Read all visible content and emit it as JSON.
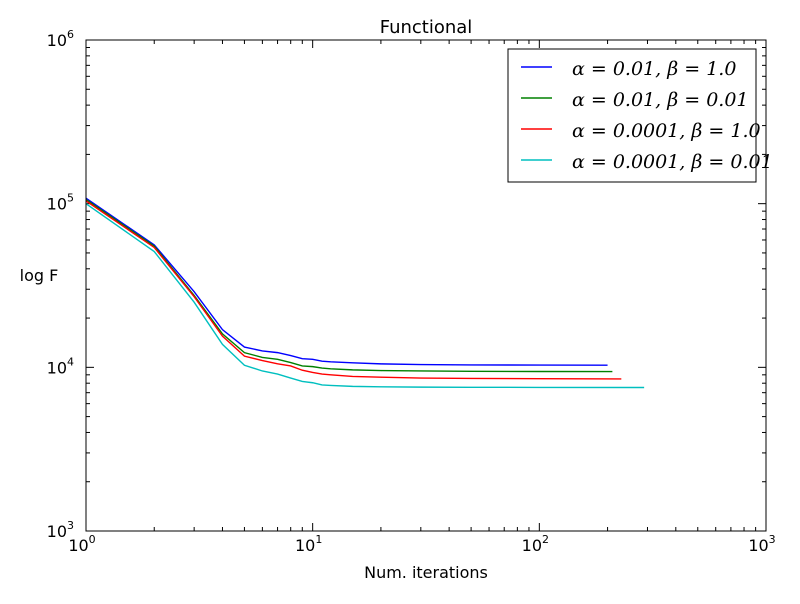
{
  "chart_data": {
    "type": "line",
    "title": "Functional",
    "xlabel": "Num. iterations",
    "ylabel": "log F",
    "xscale": "log",
    "yscale": "log",
    "xlim": [
      1,
      1000
    ],
    "ylim": [
      1000,
      1000000
    ],
    "x_ticks": [
      {
        "value": 1,
        "base": "10",
        "exp": "0"
      },
      {
        "value": 10,
        "base": "10",
        "exp": "1"
      },
      {
        "value": 100,
        "base": "10",
        "exp": "2"
      },
      {
        "value": 1000,
        "base": "10",
        "exp": "3"
      }
    ],
    "y_ticks": [
      {
        "value": 1000,
        "base": "10",
        "exp": "3"
      },
      {
        "value": 10000,
        "base": "10",
        "exp": "4"
      },
      {
        "value": 100000,
        "base": "10",
        "exp": "5"
      },
      {
        "value": 1000000,
        "base": "10",
        "exp": "6"
      }
    ],
    "grid": false,
    "legend_position": "top-right",
    "series": [
      {
        "name": "α = 0.01, β = 1.0",
        "color": "#0000ff",
        "x": [
          1,
          2,
          3,
          4,
          5,
          6,
          7,
          8,
          9,
          10,
          11,
          12,
          15,
          20,
          30,
          50,
          100,
          200
        ],
        "y": [
          108000,
          56000,
          29000,
          17000,
          13300,
          12600,
          12300,
          11800,
          11300,
          11200,
          10900,
          10800,
          10650,
          10500,
          10400,
          10350,
          10320,
          10300
        ]
      },
      {
        "name": "α = 0.01, β = 0.01",
        "color": "#008000",
        "x": [
          1,
          2,
          3,
          4,
          5,
          6,
          7,
          8,
          9,
          10,
          11,
          12,
          15,
          20,
          30,
          50,
          100,
          210
        ],
        "y": [
          106000,
          55000,
          27500,
          16000,
          12300,
          11500,
          11200,
          10700,
          10200,
          10100,
          9900,
          9800,
          9650,
          9550,
          9500,
          9450,
          9430,
          9420
        ]
      },
      {
        "name": "α = 0.0001, β = 1.0",
        "color": "#ff0000",
        "x": [
          1,
          2,
          3,
          4,
          5,
          6,
          7,
          8,
          9,
          10,
          11,
          12,
          15,
          20,
          30,
          50,
          100,
          230
        ],
        "y": [
          104000,
          54000,
          27000,
          15500,
          11700,
          11000,
          10500,
          10200,
          9600,
          9300,
          9100,
          9000,
          8800,
          8700,
          8600,
          8550,
          8520,
          8500
        ]
      },
      {
        "name": "α = 0.0001, β = 0.01",
        "color": "#00bfbf",
        "x": [
          1,
          2,
          3,
          4,
          5,
          6,
          7,
          8,
          9,
          10,
          11,
          12,
          15,
          20,
          30,
          50,
          100,
          290
        ],
        "y": [
          100000,
          51000,
          25000,
          13800,
          10300,
          9500,
          9100,
          8600,
          8200,
          8050,
          7800,
          7750,
          7650,
          7600,
          7570,
          7550,
          7540,
          7530
        ]
      }
    ]
  }
}
